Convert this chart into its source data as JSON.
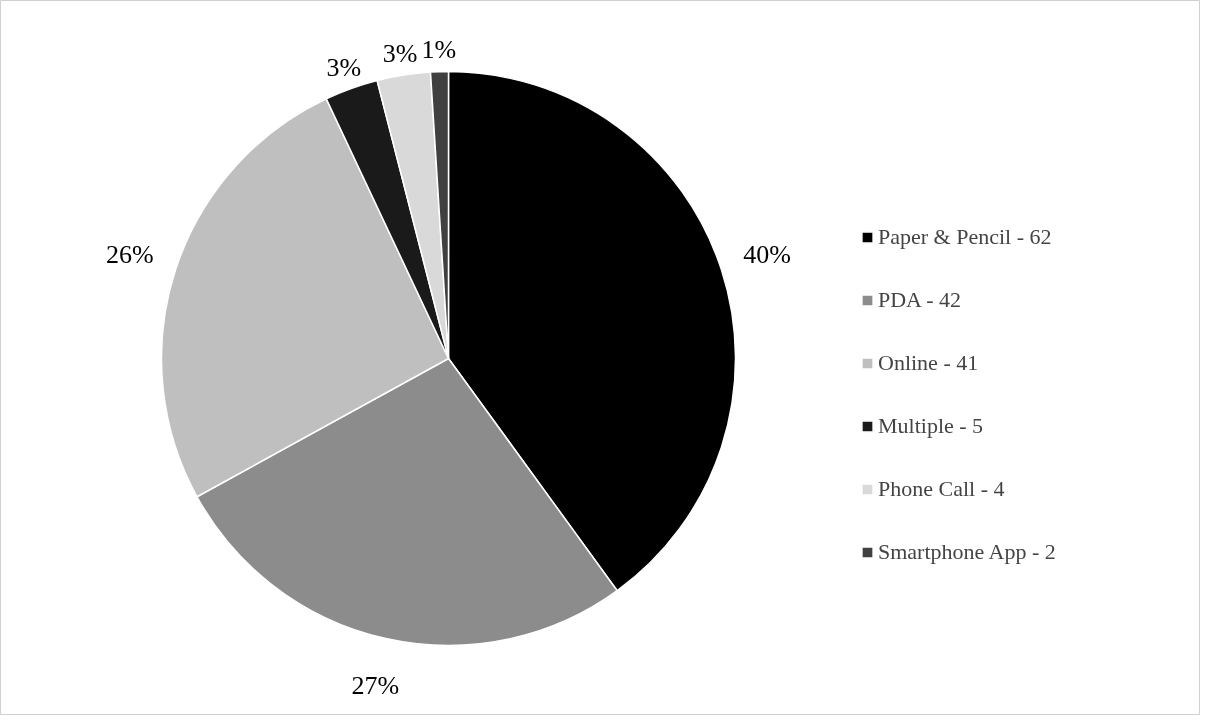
{
  "chart_data": {
    "type": "pie",
    "categories": [
      "Paper & Pencil - 62",
      "PDA - 42",
      "Online - 41",
      "Multiple - 5",
      "Phone Call - 4",
      "Smartphone App - 2"
    ],
    "values": [
      40,
      27,
      26,
      3,
      3,
      1
    ],
    "value_labels": [
      "40%",
      "27%",
      "26%",
      "3%",
      "3%",
      "1%"
    ],
    "colors": [
      "#000000",
      "#8c8c8c",
      "#bfbfbf",
      "#1a1a1a",
      "#d9d9d9",
      "#404040"
    ],
    "legend": "right"
  }
}
